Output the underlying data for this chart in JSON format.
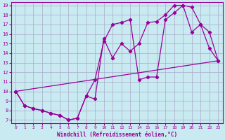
{
  "xlabel": "Windchill (Refroidissement éolien,°C)",
  "background_color": "#c8eaf0",
  "line_color": "#990099",
  "grid_color": "#aaaacc",
  "xlim_min": -0.5,
  "xlim_max": 23.5,
  "ylim_min": 6.7,
  "ylim_max": 19.3,
  "xticks": [
    0,
    1,
    2,
    3,
    4,
    5,
    6,
    7,
    8,
    9,
    10,
    11,
    12,
    13,
    14,
    15,
    16,
    17,
    18,
    19,
    20,
    21,
    22,
    23
  ],
  "yticks": [
    7,
    8,
    9,
    10,
    11,
    12,
    13,
    14,
    15,
    16,
    17,
    18,
    19
  ],
  "line1_x": [
    0,
    1,
    2,
    3,
    4,
    5,
    6,
    7,
    8,
    9,
    10,
    11,
    12,
    13,
    14,
    15,
    16,
    17,
    18,
    19,
    20,
    21,
    22,
    23
  ],
  "line1_y": [
    10,
    8.5,
    8.2,
    8.0,
    7.7,
    7.5,
    7.0,
    7.2,
    9.5,
    9.2,
    15.5,
    13.5,
    15.0,
    14.2,
    15.0,
    17.2,
    17.3,
    18.0,
    19.0,
    19.0,
    16.2,
    17.0,
    14.5,
    13.2
  ],
  "line2_x": [
    0,
    1,
    2,
    3,
    4,
    5,
    6,
    7,
    8,
    9,
    10,
    11,
    12,
    13,
    14,
    15,
    16,
    17,
    18,
    19,
    20,
    21,
    22,
    23
  ],
  "line2_y": [
    10,
    8.5,
    8.2,
    8.0,
    7.7,
    7.5,
    7.0,
    7.2,
    9.5,
    11.2,
    15.2,
    17.0,
    17.2,
    17.5,
    11.2,
    11.5,
    11.5,
    17.5,
    18.2,
    19.0,
    18.8,
    17.0,
    16.2,
    13.2
  ],
  "line3_x": [
    0,
    23
  ],
  "line3_y": [
    10,
    13.2
  ]
}
